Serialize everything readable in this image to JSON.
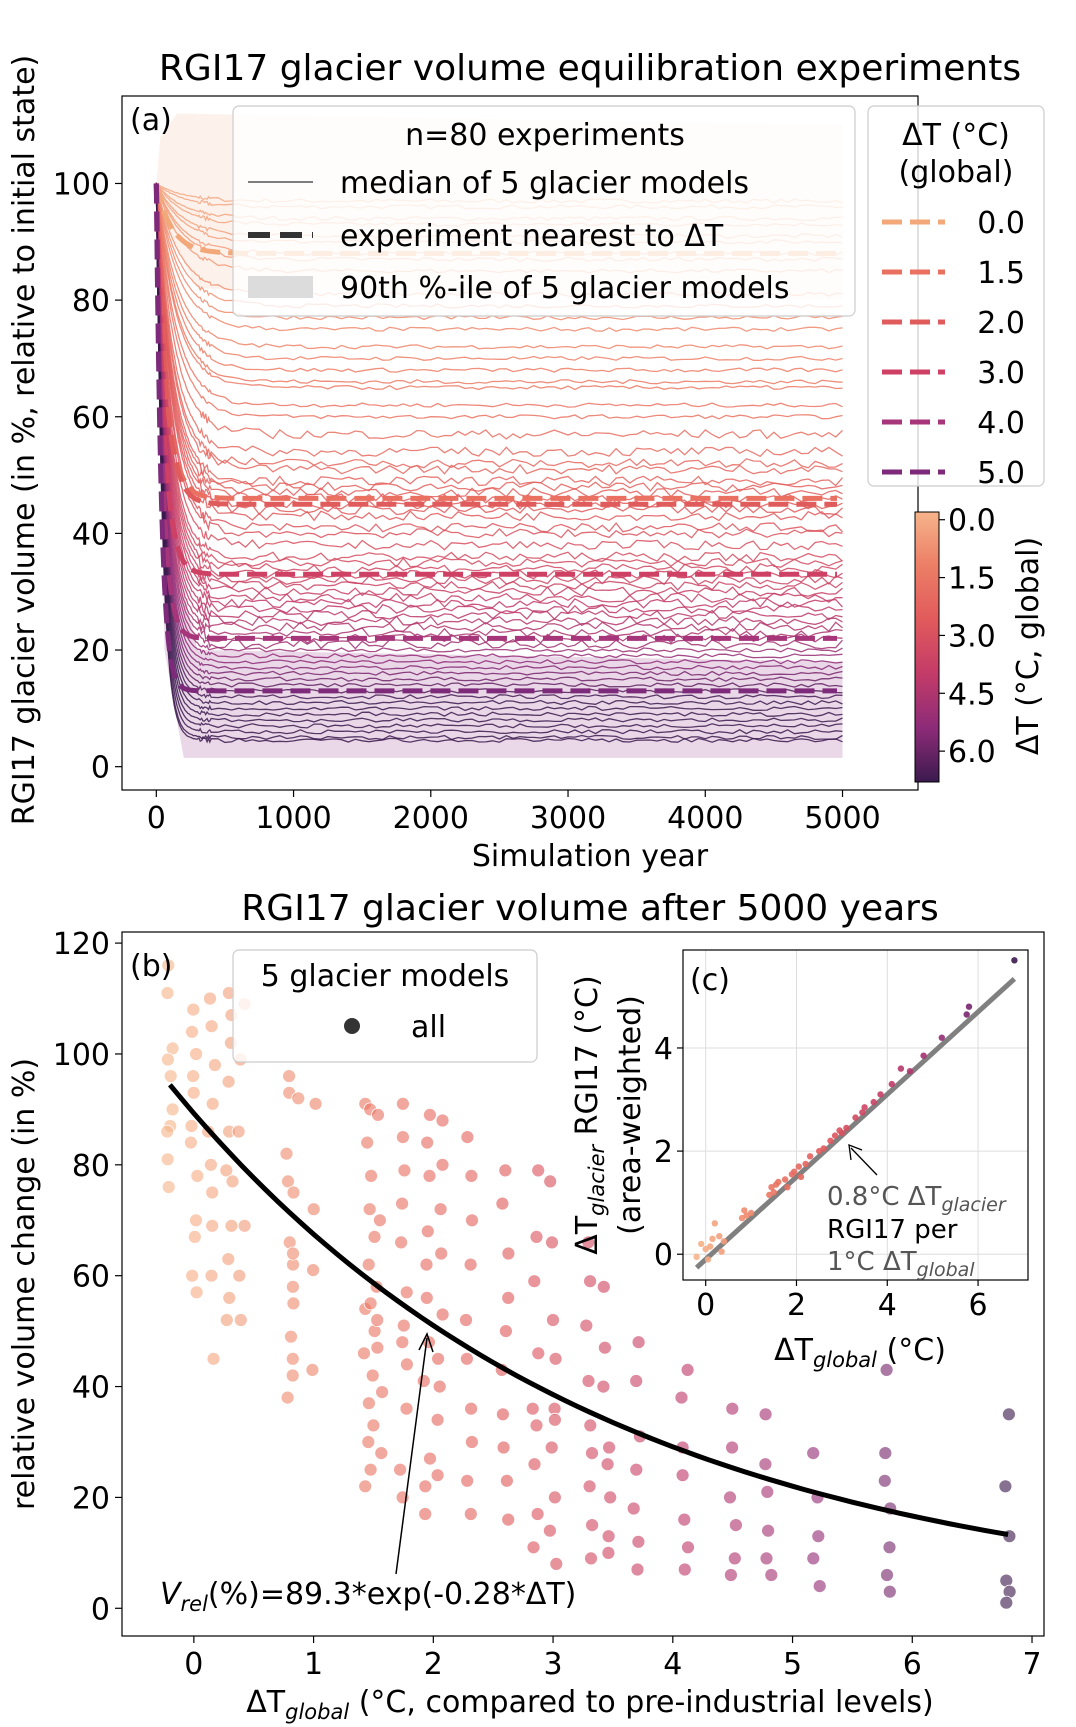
{
  "chart_data": [
    {
      "type": "line",
      "panel_label": "(a)",
      "title": "RGI17 glacier volume equilibration experiments",
      "xlabel": "Simulation year",
      "ylabel": "RGI17 glacier volume (in %, relative to initial state)",
      "xlim": [
        -250,
        5550
      ],
      "ylim": [
        -4,
        115
      ],
      "xticks": [
        "0",
        "1000",
        "2000",
        "3000",
        "4000",
        "5000"
      ],
      "yticks": [
        "0",
        "20",
        "40",
        "60",
        "80",
        "100"
      ],
      "legend_main": {
        "title": "n=80 experiments",
        "entries": [
          "median of 5 glacier models",
          "experiment nearest to ΔT",
          "90th %-ile of 5 glacier models"
        ]
      },
      "legend_dt": {
        "title_line1": "ΔT (°C)",
        "title_line2": "(global)",
        "entries": [
          "0.0",
          "1.5",
          "2.0",
          "3.0",
          "4.0",
          "5.0"
        ]
      },
      "colorbar": {
        "label": "ΔT (°C, global)",
        "ticks": [
          "0.0",
          "1.5",
          "3.0",
          "4.5",
          "6.0"
        ],
        "range": [
          -0.2,
          6.8
        ]
      },
      "equilibrium_levels": [
        97,
        96,
        94,
        93,
        91,
        90,
        88,
        87,
        85,
        81,
        79,
        77,
        75,
        72,
        70,
        68,
        66,
        65,
        62,
        60,
        57,
        54,
        52,
        51,
        49,
        48,
        47,
        46,
        45,
        44,
        43,
        41,
        40,
        38,
        36,
        35,
        34,
        33,
        32,
        31,
        30,
        29,
        28,
        27,
        26,
        25,
        24,
        23,
        22,
        21,
        20,
        19,
        18,
        17,
        16,
        15,
        14,
        13,
        12,
        11,
        10,
        9,
        8,
        7,
        6,
        5,
        4.5
      ],
      "highlighted_series": [
        {
          "name": "0.0",
          "level": 88,
          "color": "#f2a878"
        },
        {
          "name": "1.5",
          "level": 46,
          "color": "#ea7062"
        },
        {
          "name": "2.0",
          "level": 45,
          "color": "#e05c5c"
        },
        {
          "name": "3.0",
          "level": 33,
          "color": "#cf4065"
        },
        {
          "name": "4.0",
          "level": 22,
          "color": "#a6357a"
        },
        {
          "name": "5.0",
          "level": 13,
          "color": "#7e2a7a"
        }
      ]
    },
    {
      "type": "scatter",
      "panel_label": "(b)",
      "title": "RGI17 glacier volume after 5000 years",
      "xlabel_main": "ΔT",
      "xlabel_sub": "global",
      "xlabel_rest": " (°C, compared to pre-industrial levels)",
      "ylabel": "relative volume change (in %)",
      "xlim": [
        -0.6,
        7.1
      ],
      "ylim": [
        -5,
        122
      ],
      "xticks": [
        "0",
        "1",
        "2",
        "3",
        "4",
        "5",
        "6",
        "7"
      ],
      "yticks": [
        "0",
        "20",
        "40",
        "60",
        "80",
        "100",
        "120"
      ],
      "legend": {
        "title": "5 glacier models",
        "entry": "all"
      },
      "fit": {
        "a": 89.3,
        "b": -0.28,
        "label_v": "V",
        "label_sub": "rel",
        "label_rest": "(%)=89.3*exp(-0.28*ΔT)"
      },
      "dt_columns": [
        -0.2,
        0.0,
        0.15,
        0.3,
        0.8,
        0.85,
        1.45,
        1.5,
        1.55,
        1.75,
        1.95,
        2.05,
        2.3,
        2.6,
        2.85,
        3.0,
        3.3,
        3.45,
        3.7,
        4.1,
        4.5,
        4.8,
        5.2,
        5.8,
        6.8
      ],
      "points": [
        [
          -0.2,
          116
        ],
        [
          -0.2,
          111
        ],
        [
          -0.2,
          101
        ],
        [
          -0.2,
          99
        ],
        [
          -0.2,
          96
        ],
        [
          -0.2,
          90
        ],
        [
          -0.2,
          87
        ],
        [
          -0.2,
          86
        ],
        [
          -0.2,
          81
        ],
        [
          -0.2,
          76
        ],
        [
          0.0,
          108
        ],
        [
          0.0,
          104
        ],
        [
          0.0,
          100
        ],
        [
          0.0,
          96
        ],
        [
          0.0,
          93
        ],
        [
          0.0,
          87
        ],
        [
          0.0,
          84
        ],
        [
          0.0,
          78
        ],
        [
          0.0,
          70
        ],
        [
          0.0,
          67
        ],
        [
          0.0,
          60
        ],
        [
          0.0,
          57
        ],
        [
          0.15,
          110
        ],
        [
          0.15,
          105
        ],
        [
          0.15,
          98
        ],
        [
          0.15,
          91
        ],
        [
          0.15,
          86
        ],
        [
          0.15,
          80
        ],
        [
          0.15,
          75
        ],
        [
          0.15,
          69
        ],
        [
          0.15,
          60
        ],
        [
          0.15,
          45
        ],
        [
          0.3,
          111
        ],
        [
          0.3,
          107
        ],
        [
          0.3,
          102
        ],
        [
          0.3,
          95
        ],
        [
          0.3,
          86
        ],
        [
          0.3,
          79
        ],
        [
          0.3,
          77
        ],
        [
          0.3,
          69
        ],
        [
          0.3,
          63
        ],
        [
          0.3,
          56
        ],
        [
          0.3,
          52
        ],
        [
          0.4,
          109
        ],
        [
          0.4,
          99
        ],
        [
          0.4,
          86
        ],
        [
          0.4,
          69
        ],
        [
          0.4,
          60
        ],
        [
          0.4,
          52
        ],
        [
          0.8,
          96
        ],
        [
          0.8,
          93
        ],
        [
          0.8,
          82
        ],
        [
          0.8,
          77
        ],
        [
          0.8,
          66
        ],
        [
          0.8,
          62
        ],
        [
          0.8,
          58
        ],
        [
          0.8,
          49
        ],
        [
          0.8,
          42
        ],
        [
          0.8,
          38
        ],
        [
          0.85,
          92
        ],
        [
          0.85,
          75
        ],
        [
          0.85,
          64
        ],
        [
          0.85,
          55
        ],
        [
          0.85,
          45
        ],
        [
          1.0,
          91
        ],
        [
          1.0,
          72
        ],
        [
          1.0,
          61
        ],
        [
          1.0,
          43
        ],
        [
          1.45,
          91
        ],
        [
          1.45,
          84
        ],
        [
          1.45,
          72
        ],
        [
          1.45,
          62
        ],
        [
          1.45,
          54
        ],
        [
          1.45,
          46
        ],
        [
          1.45,
          37
        ],
        [
          1.45,
          30
        ],
        [
          1.45,
          22
        ],
        [
          1.5,
          90
        ],
        [
          1.5,
          78
        ],
        [
          1.5,
          67
        ],
        [
          1.5,
          55
        ],
        [
          1.5,
          50
        ],
        [
          1.5,
          42
        ],
        [
          1.5,
          33
        ],
        [
          1.5,
          25
        ],
        [
          1.55,
          89
        ],
        [
          1.55,
          70
        ],
        [
          1.55,
          58
        ],
        [
          1.55,
          52
        ],
        [
          1.55,
          47
        ],
        [
          1.55,
          39
        ],
        [
          1.55,
          28
        ],
        [
          1.75,
          91
        ],
        [
          1.75,
          85
        ],
        [
          1.75,
          79
        ],
        [
          1.75,
          73
        ],
        [
          1.75,
          66
        ],
        [
          1.75,
          57
        ],
        [
          1.75,
          51
        ],
        [
          1.75,
          48
        ],
        [
          1.75,
          44
        ],
        [
          1.75,
          36
        ],
        [
          1.75,
          25
        ],
        [
          1.75,
          20
        ],
        [
          1.95,
          89
        ],
        [
          1.95,
          84
        ],
        [
          1.95,
          78
        ],
        [
          1.95,
          68
        ],
        [
          1.95,
          62
        ],
        [
          1.95,
          56
        ],
        [
          1.95,
          48
        ],
        [
          1.95,
          41
        ],
        [
          1.95,
          27
        ],
        [
          1.95,
          22
        ],
        [
          1.95,
          17
        ],
        [
          2.05,
          88
        ],
        [
          2.05,
          80
        ],
        [
          2.05,
          72
        ],
        [
          2.05,
          64
        ],
        [
          2.05,
          53
        ],
        [
          2.05,
          45
        ],
        [
          2.05,
          40
        ],
        [
          2.05,
          34
        ],
        [
          2.05,
          24
        ],
        [
          2.3,
          85
        ],
        [
          2.3,
          78
        ],
        [
          2.3,
          70
        ],
        [
          2.3,
          62
        ],
        [
          2.3,
          52
        ],
        [
          2.3,
          45
        ],
        [
          2.3,
          36
        ],
        [
          2.3,
          30
        ],
        [
          2.3,
          23
        ],
        [
          2.3,
          17
        ],
        [
          2.6,
          79
        ],
        [
          2.6,
          73
        ],
        [
          2.6,
          64
        ],
        [
          2.6,
          56
        ],
        [
          2.6,
          50
        ],
        [
          2.6,
          43
        ],
        [
          2.6,
          35
        ],
        [
          2.6,
          29
        ],
        [
          2.6,
          23
        ],
        [
          2.6,
          16
        ],
        [
          2.85,
          79
        ],
        [
          2.85,
          67
        ],
        [
          2.85,
          59
        ],
        [
          2.85,
          46
        ],
        [
          2.85,
          36
        ],
        [
          2.85,
          33
        ],
        [
          2.85,
          26
        ],
        [
          2.85,
          17
        ],
        [
          2.85,
          11
        ],
        [
          3.0,
          77
        ],
        [
          3.0,
          66
        ],
        [
          3.0,
          52
        ],
        [
          3.0,
          45
        ],
        [
          3.0,
          36
        ],
        [
          3.0,
          34
        ],
        [
          3.0,
          29
        ],
        [
          3.0,
          20
        ],
        [
          3.0,
          14
        ],
        [
          3.0,
          8
        ],
        [
          3.3,
          66
        ],
        [
          3.3,
          59
        ],
        [
          3.3,
          51
        ],
        [
          3.3,
          41
        ],
        [
          3.3,
          33
        ],
        [
          3.3,
          28
        ],
        [
          3.3,
          22
        ],
        [
          3.3,
          15
        ],
        [
          3.3,
          9
        ],
        [
          3.45,
          58
        ],
        [
          3.45,
          47
        ],
        [
          3.45,
          40
        ],
        [
          3.45,
          29
        ],
        [
          3.45,
          26
        ],
        [
          3.45,
          20
        ],
        [
          3.45,
          13
        ],
        [
          3.45,
          10
        ],
        [
          3.7,
          48
        ],
        [
          3.7,
          41
        ],
        [
          3.7,
          31
        ],
        [
          3.7,
          25
        ],
        [
          3.7,
          18
        ],
        [
          3.7,
          12
        ],
        [
          3.7,
          7
        ],
        [
          4.1,
          43
        ],
        [
          4.1,
          38
        ],
        [
          4.1,
          29
        ],
        [
          4.1,
          24
        ],
        [
          4.1,
          16
        ],
        [
          4.1,
          11
        ],
        [
          4.1,
          7
        ],
        [
          4.5,
          36
        ],
        [
          4.5,
          29
        ],
        [
          4.5,
          20
        ],
        [
          4.5,
          15
        ],
        [
          4.5,
          9
        ],
        [
          4.5,
          6
        ],
        [
          4.8,
          35
        ],
        [
          4.8,
          26
        ],
        [
          4.8,
          21
        ],
        [
          4.8,
          14
        ],
        [
          4.8,
          9
        ],
        [
          4.8,
          6
        ],
        [
          5.2,
          28
        ],
        [
          5.2,
          20
        ],
        [
          5.2,
          13
        ],
        [
          5.2,
          9
        ],
        [
          5.2,
          4
        ],
        [
          5.8,
          43
        ],
        [
          5.8,
          28
        ],
        [
          5.8,
          23
        ],
        [
          5.8,
          18
        ],
        [
          5.8,
          11
        ],
        [
          5.8,
          6
        ],
        [
          5.8,
          3
        ],
        [
          6.8,
          35
        ],
        [
          6.8,
          22
        ],
        [
          6.8,
          13
        ],
        [
          6.8,
          5
        ],
        [
          6.8,
          3
        ],
        [
          6.8,
          1
        ]
      ]
    },
    {
      "type": "scatter",
      "panel_label": "(c)",
      "xlabel_main": "ΔT",
      "xlabel_sub": "global",
      "xlabel_rest": " (°C)",
      "ylabel_main": "ΔT",
      "ylabel_sub": "glacier",
      "ylabel_rest": " RGI17 (°C)",
      "ylabel_line2": "(area-weighted)",
      "xlim": [
        -0.5,
        7.1
      ],
      "ylim": [
        -0.5,
        5.9
      ],
      "xticks": [
        "0",
        "2",
        "4",
        "6"
      ],
      "yticks": [
        "0",
        "2",
        "4"
      ],
      "grid": true,
      "fit": {
        "slope": 0.8
      },
      "annotation_line1_pre": "0.8°C ΔT",
      "annotation_line1_sub": "glacier",
      "annotation_line2": "RGI17 per",
      "annotation_line3_pre": "1°C ΔT",
      "annotation_line3_sub": "global",
      "points": [
        [
          -0.2,
          -0.05
        ],
        [
          0.0,
          0.1
        ],
        [
          0.1,
          0.15
        ],
        [
          0.15,
          0.3
        ],
        [
          0.3,
          0.35
        ],
        [
          0.4,
          0.25
        ],
        [
          0.2,
          0.6
        ],
        [
          -0.1,
          0.2
        ],
        [
          0.05,
          -0.1
        ],
        [
          0.35,
          0.05
        ],
        [
          0.8,
          0.7
        ],
        [
          0.85,
          0.85
        ],
        [
          0.9,
          0.75
        ],
        [
          1.0,
          0.8
        ],
        [
          1.4,
          1.15
        ],
        [
          1.45,
          1.3
        ],
        [
          1.5,
          1.2
        ],
        [
          1.55,
          1.35
        ],
        [
          1.6,
          1.4
        ],
        [
          1.75,
          1.45
        ],
        [
          1.8,
          1.3
        ],
        [
          1.9,
          1.55
        ],
        [
          1.95,
          1.6
        ],
        [
          2.05,
          1.7
        ],
        [
          2.1,
          1.5
        ],
        [
          2.2,
          1.75
        ],
        [
          2.3,
          1.9
        ],
        [
          2.5,
          2.0
        ],
        [
          2.6,
          2.05
        ],
        [
          2.75,
          2.2
        ],
        [
          2.85,
          2.3
        ],
        [
          2.95,
          2.4
        ],
        [
          3.0,
          2.35
        ],
        [
          3.1,
          2.45
        ],
        [
          3.3,
          2.65
        ],
        [
          3.45,
          2.75
        ],
        [
          3.5,
          2.85
        ],
        [
          3.7,
          2.95
        ],
        [
          3.85,
          3.1
        ],
        [
          4.1,
          3.3
        ],
        [
          4.3,
          3.6
        ],
        [
          4.5,
          3.55
        ],
        [
          4.8,
          3.85
        ],
        [
          5.2,
          4.2
        ],
        [
          5.75,
          4.65
        ],
        [
          5.8,
          4.8
        ],
        [
          6.8,
          5.7
        ]
      ]
    }
  ]
}
